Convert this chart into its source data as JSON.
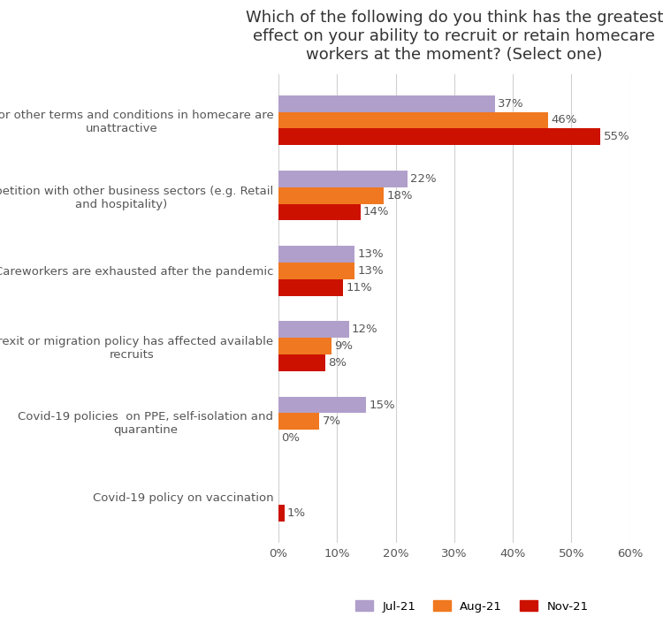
{
  "title": "Which of the following do you think has the greatest\neffect on your ability to recruit or retain homecare\nworkers at the moment? (Select one)",
  "categories": [
    "Covid-19 policy on vaccination",
    "Covid-19 policies  on PPE, self-isolation and\nquarantine",
    "Brexit or migration policy has affected available\nrecruits",
    "Careworkers are exhausted after the pandemic",
    "Competition with other business sectors (e.g. Retail\nand hospitality)",
    "Pay, or other terms and conditions in homecare are\nunattractive"
  ],
  "series": {
    "Jul-21": [
      0,
      15,
      12,
      13,
      22,
      37
    ],
    "Aug-21": [
      0,
      7,
      9,
      13,
      18,
      46
    ],
    "Nov-21": [
      1,
      0,
      8,
      11,
      14,
      55
    ]
  },
  "colors": {
    "Jul-21": "#b09fca",
    "Aug-21": "#f07820",
    "Nov-21": "#cc1100"
  },
  "xlim": [
    0,
    60
  ],
  "xticks": [
    0,
    10,
    20,
    30,
    40,
    50,
    60
  ],
  "xticklabels": [
    "0%",
    "10%",
    "20%",
    "30%",
    "40%",
    "50%",
    "60%"
  ],
  "background_color": "#ffffff",
  "title_fontsize": 13,
  "label_fontsize": 9.5,
  "tick_fontsize": 9.5,
  "bar_height": 0.22,
  "legend_labels": [
    "Jul-21",
    "Aug-21",
    "Nov-21"
  ]
}
